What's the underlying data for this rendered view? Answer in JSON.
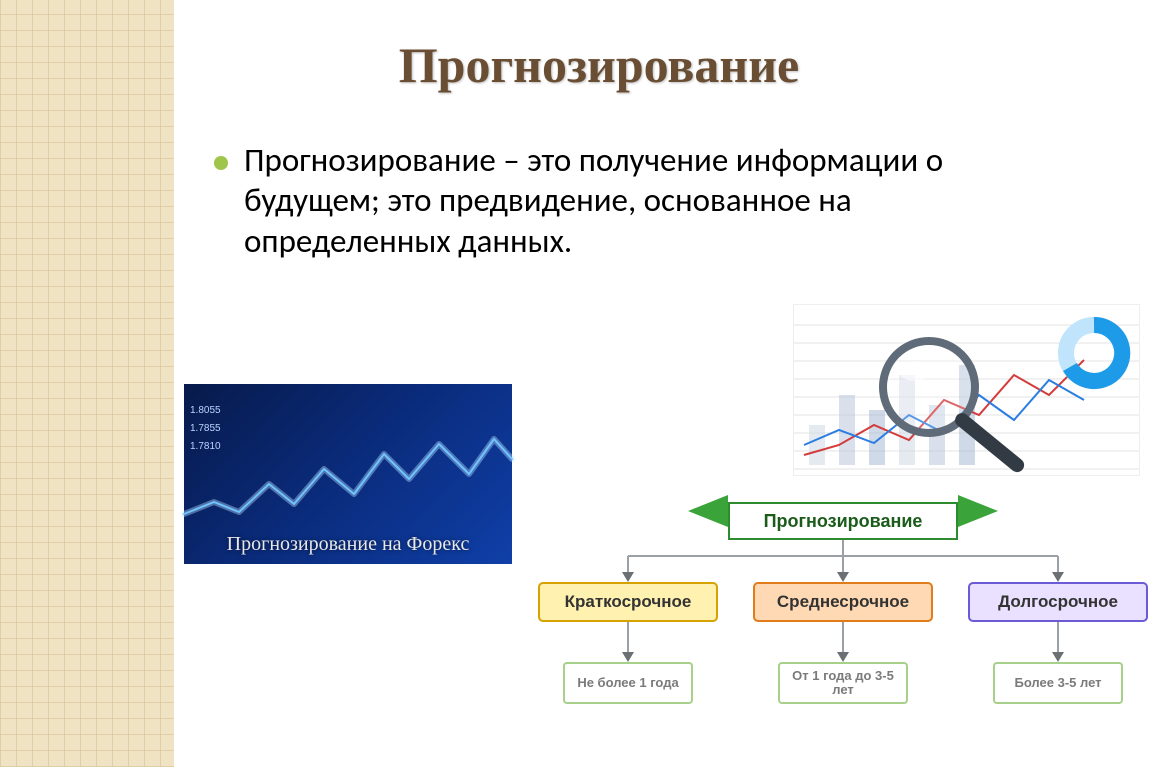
{
  "title": "Прогнозирование",
  "body": "Прогнозирование – это получение информации о будущем; это предвидение, основанное на определенных данных.",
  "colors": {
    "title": "#6a4e34",
    "bullet": "#9fc54a",
    "sidebar_bg": "#f0e3c4",
    "sidebar_grid": "#d2be8c"
  },
  "forex": {
    "caption": "Прогнозирование на Форекс",
    "bg_gradient": [
      "#071a4a",
      "#0a2a78",
      "#0f3fa8"
    ],
    "tick_labels": [
      "1.8055",
      "1.7855",
      "1.7810"
    ],
    "tick_color": "#bcd3ff",
    "caption_color": "#e8e8e8",
    "line_color": "#6fc4ff",
    "line_glow": "#b8e2ff",
    "points": [
      [
        0,
        130
      ],
      [
        30,
        118
      ],
      [
        55,
        128
      ],
      [
        85,
        100
      ],
      [
        110,
        120
      ],
      [
        140,
        85
      ],
      [
        170,
        110
      ],
      [
        200,
        70
      ],
      [
        225,
        95
      ],
      [
        255,
        60
      ],
      [
        285,
        90
      ],
      [
        310,
        55
      ],
      [
        328,
        75
      ]
    ]
  },
  "analysis": {
    "bg": "#ffffff",
    "bar_colors": [
      "#cfd8e6",
      "#b9c6dc",
      "#a8b9d4"
    ],
    "grid_color": "#e3e3e3",
    "line1_color": "#d43b3b",
    "line2_color": "#2a7de1",
    "donut_outer": "#1e9be8",
    "donut_inner": "#bfe4fb",
    "magnifier_ring": "#5f6b78",
    "magnifier_handle": "#323a44",
    "line1_points": [
      [
        10,
        150
      ],
      [
        45,
        140
      ],
      [
        80,
        120
      ],
      [
        115,
        135
      ],
      [
        150,
        95
      ],
      [
        185,
        110
      ],
      [
        220,
        70
      ],
      [
        255,
        90
      ],
      [
        290,
        55
      ]
    ],
    "line2_points": [
      [
        10,
        140
      ],
      [
        45,
        125
      ],
      [
        80,
        138
      ],
      [
        115,
        110
      ],
      [
        150,
        128
      ],
      [
        185,
        90
      ],
      [
        220,
        115
      ],
      [
        255,
        75
      ],
      [
        290,
        95
      ]
    ]
  },
  "flowchart": {
    "banner": {
      "label": "Прогнозирование",
      "bg": "#ffffff",
      "border": "#2e8b2e",
      "text": "#1b5c1b",
      "ribbon": "#3aa43a"
    },
    "connector_color": "#9aa0a6",
    "arrow_color": "#6b7075",
    "categories": [
      {
        "label": "Краткосрочное",
        "bg": "#fff1b0",
        "border": "#d6a200",
        "detail": "Не более 1 года"
      },
      {
        "label": "Среднесрочное",
        "bg": "#ffd9b3",
        "border": "#e07c1a",
        "detail": "От 1 года до 3-5 лет"
      },
      {
        "label": "Долгосрочное",
        "bg": "#e9e1ff",
        "border": "#6b5bd6",
        "detail": "Более 3-5 лет"
      }
    ],
    "detail_border": "#a7d08a",
    "detail_text": "#7a7a7a",
    "category_positions": [
      20,
      235,
      450
    ],
    "detail_positions": [
      45,
      260,
      475
    ]
  }
}
